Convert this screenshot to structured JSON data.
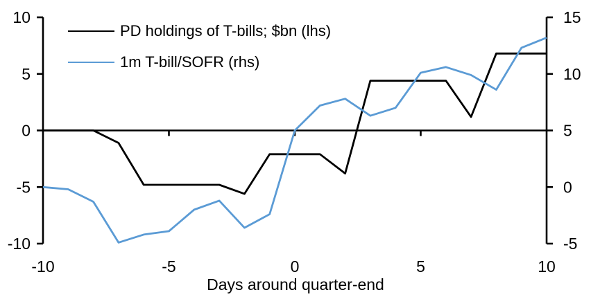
{
  "chart_data": {
    "type": "line",
    "title": "",
    "xlabel": "Days around quarter-end",
    "grid": false,
    "legend_position": "top-left",
    "axis_color": "#000000",
    "x": [
      -10,
      -9,
      -8,
      -7,
      -6,
      -5,
      -4,
      -3,
      -2,
      -1,
      0,
      1,
      2,
      3,
      4,
      5,
      6,
      7,
      8,
      9,
      10
    ],
    "series": [
      {
        "name": "PD holdings of T-bills; $bn (lhs)",
        "axis": "left",
        "color": "#000000",
        "values": [
          0,
          0,
          0,
          -1.1,
          -4.8,
          -4.8,
          -4.8,
          -4.8,
          -5.6,
          -2.1,
          -2.1,
          -2.1,
          -3.8,
          4.4,
          4.4,
          4.4,
          4.4,
          1.2,
          6.8,
          6.8,
          6.8
        ]
      },
      {
        "name": "1m T-bill/SOFR (rhs)",
        "axis": "right",
        "color": "#5B9BD5",
        "values": [
          0,
          -0.2,
          -1.3,
          -4.9,
          -4.2,
          -3.9,
          -2.0,
          -1.2,
          -3.6,
          -2.4,
          5.0,
          7.2,
          7.8,
          6.3,
          7.0,
          10.1,
          10.6,
          9.9,
          8.6,
          12.3,
          13.2
        ]
      }
    ],
    "left_axis": {
      "min": -10,
      "max": 10,
      "ticks": [
        10,
        5,
        0,
        -5,
        -10
      ]
    },
    "right_axis": {
      "min": -5,
      "max": 15,
      "ticks": [
        15,
        10,
        5,
        0,
        -5
      ]
    },
    "x_tick_labels": [
      -10,
      -5,
      0,
      5,
      10
    ],
    "zero_line_ticks": [
      -5,
      0,
      5
    ]
  }
}
